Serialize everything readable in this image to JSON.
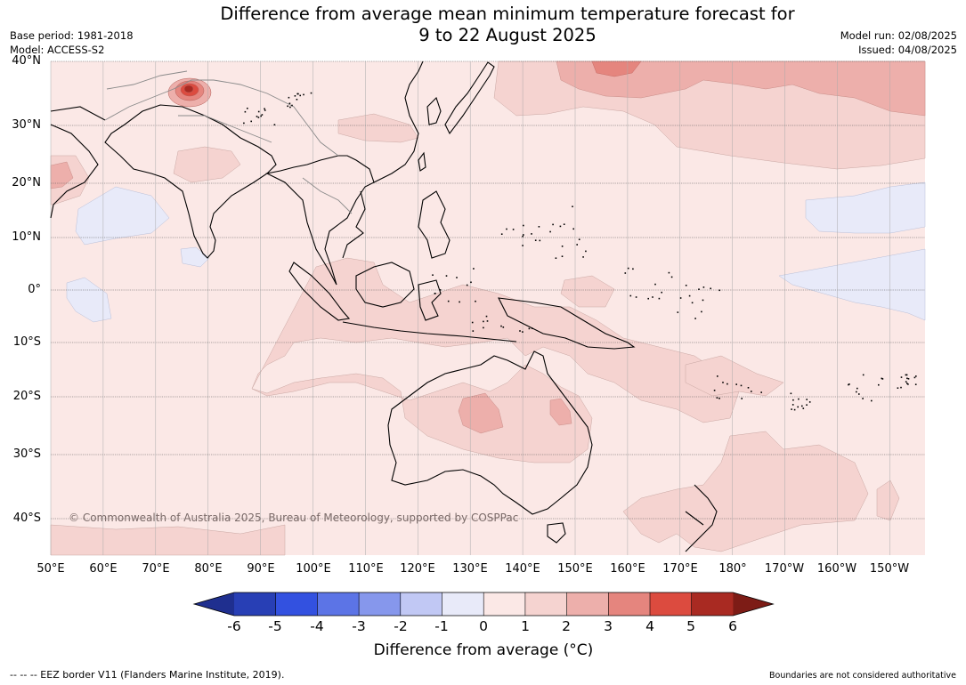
{
  "title_line1": "Difference from average mean minimum temperature forecast for",
  "title_line2": "9 to 22 August 2025",
  "base_period": "Base period: 1981-2018",
  "model": "Model: ACCESS-S2",
  "model_run": "Model run: 02/08/2025",
  "issued": "Issued: 04/08/2025",
  "copyright": "© Commonwealth of Australia 2025, Bureau of Meteorology, supported by COSPPac",
  "lat_labels": [
    "40°N",
    "30°N",
    "20°N",
    "10°N",
    "0°",
    "10°S",
    "20°S",
    "30°S",
    "40°S"
  ],
  "lon_labels": [
    "50°E",
    "60°E",
    "70°E",
    "80°E",
    "90°E",
    "100°E",
    "110°E",
    "120°E",
    "130°E",
    "140°E",
    "150°E",
    "160°E",
    "170°E",
    "180°",
    "170°W",
    "160°W",
    "150°W"
  ],
  "colorbar": {
    "ticks": [
      "-6",
      "-5",
      "-4",
      "-3",
      "-2",
      "-1",
      "0",
      "1",
      "2",
      "3",
      "4",
      "5",
      "6"
    ],
    "title": "Difference from average (°C)",
    "colors": [
      "#1f2f8f",
      "#283fb5",
      "#3351e0",
      "#5c74e6",
      "#8697ec",
      "#c1c8f4",
      "#e8eaf9",
      "#fbe8e6",
      "#f5d3d0",
      "#edafab",
      "#e5857e",
      "#dc4b3f",
      "#a92a22",
      "#7d1c16"
    ]
  },
  "legend_eez": "--  --  -- EEZ border V11 (Flanders Marine Institute, 2019).",
  "disclaimer": "Boundaries are not considered authoritative"
}
